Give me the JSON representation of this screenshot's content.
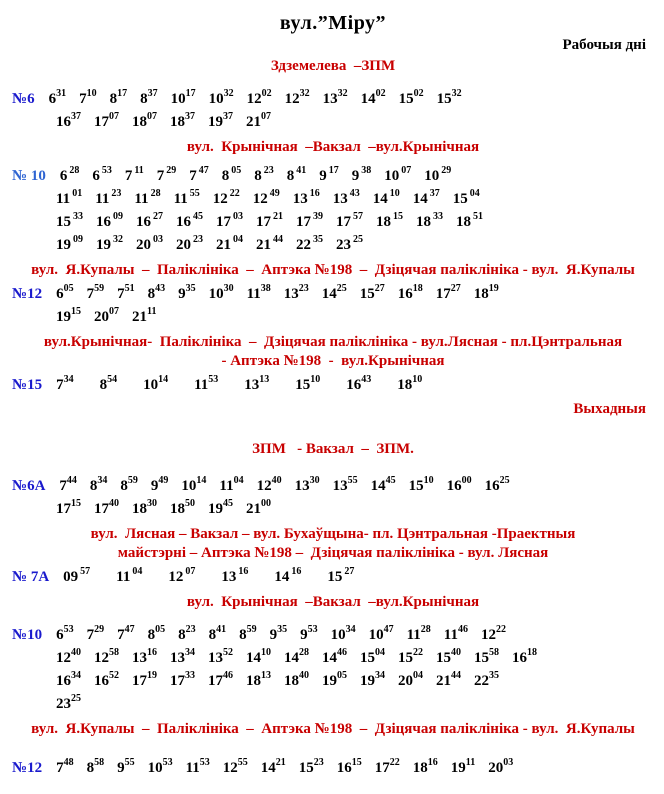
{
  "page": {
    "title": "вул.”Міру”"
  },
  "colors": {
    "heading_red": "#c80000",
    "route_number_blue": "#1a1acd",
    "times_black": "#000000"
  },
  "blocks": [
    {
      "type": "day_label",
      "text": "Рабочыя дні",
      "color": "black"
    },
    {
      "type": "heading",
      "lines": [
        "Здземелева  –ЗПМ"
      ]
    },
    {
      "type": "route",
      "number": "№6",
      "mt": 12,
      "lines": [
        [
          "6:31",
          "7:10",
          "8:17",
          "8:37",
          "10:17",
          "10:32",
          "12:02",
          "12:32",
          "13:32",
          "14:02",
          "15:02",
          "15:32"
        ],
        [
          "16:37",
          "17:07",
          "18:07",
          "18:37",
          "19:37",
          "21:07"
        ]
      ]
    },
    {
      "type": "heading",
      "lines": [
        "вул.  Крынічная  –Вакзал  –вул.Крынічная"
      ]
    },
    {
      "type": "route",
      "number": "№ 10",
      "number_color": "#2e64d2",
      "sup_space": true,
      "mt": 8,
      "lines": [
        [
          "6:28",
          "6:53",
          "7:11",
          "7:29",
          "7:47",
          "8:05",
          "8:23",
          "8:41",
          "9:17",
          "9:38",
          "10:07",
          "10:29"
        ],
        [
          "11:01",
          "11:23",
          "11:28",
          "11:55",
          "12:22",
          "12:49",
          "13:16",
          "13:43",
          "14:10",
          "14:37",
          "15:04"
        ],
        [
          "15:33",
          "16:09",
          "16:27",
          "16:45",
          "17:03",
          "17:21",
          "17:39",
          "17:57",
          "18:15",
          "18:33",
          "18:51"
        ],
        [
          "19:09",
          "19:32",
          "20:03",
          "20:23",
          "21:04",
          "21:44",
          "22:35",
          "23:25"
        ]
      ]
    },
    {
      "type": "heading",
      "lines": [
        "вул.  Я.Купалы  –  Паліклініка  –  Аптэка №198  –  Дзіцячая паліклініка - вул.  Я.Купалы"
      ]
    },
    {
      "type": "route",
      "number": "№12",
      "mt": 2,
      "lines": [
        [
          "6:05",
          "7:59",
          "7:51",
          "8:43",
          "9:35",
          "10:30",
          "11:38",
          "13:23",
          "14:25",
          "15:27",
          "16:18",
          "17:27",
          "18:19"
        ],
        [
          "19:15",
          "20:07",
          "21:11"
        ]
      ]
    },
    {
      "type": "heading",
      "mt": 4,
      "lines": [
        "вул.Крынічная-  Паліклініка  –  Дзіцячая паліклініка - вул.Лясная - пл.Цэнтральная",
        "- Аптэка №198  -  вул.Крынічная"
      ]
    },
    {
      "type": "route",
      "number": "№15",
      "wide": true,
      "mt": 2,
      "lines": [
        [
          "7:34",
          "8:54",
          "10:14",
          "11:53",
          "13:13",
          "15:10",
          "16:43",
          "18:10"
        ]
      ]
    },
    {
      "type": "day_label",
      "text": "Выхадныя",
      "color": "red",
      "mt": 4
    },
    {
      "type": "heading",
      "mt": 22,
      "lines": [
        "ЗПМ   - Вакзал  –  ЗПМ."
      ]
    },
    {
      "type": "route",
      "number": "№6А",
      "mt": 16,
      "lines": [
        [
          "7:44",
          "8:34",
          "8:59",
          "9:49",
          "10:14",
          "11:04",
          "12:40",
          "13:30",
          "13:55",
          "14:45",
          "15:10",
          "16:00",
          "16:25"
        ],
        [
          "17:15",
          "17:40",
          "18:30",
          "18:50",
          "19:45",
          "21:00"
        ]
      ]
    },
    {
      "type": "heading",
      "mt": 4,
      "lines": [
        "вул.  Лясная – Вакзал – вул. Бухаўщына- пл. Цэнтральная -Праектныя",
        "майстэрні – Аптэка №198 –  Дзіцячая паліклініка - вул. Лясная"
      ]
    },
    {
      "type": "route",
      "number": "№ 7А",
      "wide": true,
      "sup_space": true,
      "mt": 2,
      "lines": [
        [
          "09:57",
          "11:04",
          "12:07",
          "13:16",
          "14:16",
          "15:27"
        ]
      ]
    },
    {
      "type": "heading",
      "lines": [
        "вул.  Крынічная  –Вакзал  –вул.Крынічная"
      ]
    },
    {
      "type": "route",
      "number": "№10",
      "mt": 12,
      "lines": [
        [
          "6:53",
          "7:29",
          "7:47",
          "8:05",
          "8:23",
          "8:41",
          "8:59",
          "9:35",
          "9:53",
          "10:34",
          "10:47",
          "11:28",
          "11:46",
          "12:22"
        ],
        [
          "12:40",
          "12:58",
          "13:16",
          "13:34",
          "13:52",
          "14:10",
          "14:28",
          "14:46",
          "15:04",
          "15:22",
          "15:40",
          "15:58",
          "16:18"
        ],
        [
          "16:34",
          "16:52",
          "17:19",
          "17:33",
          "17:46",
          "18:13",
          "18:40",
          "19:05",
          "19:34",
          "20:04",
          "21:44",
          "22:35"
        ],
        [
          "23:25"
        ]
      ]
    },
    {
      "type": "heading",
      "mt": 4,
      "lines": [
        "вул.  Я.Купалы  –  Паліклініка  –  Аптэка №198  –  Дзіцячая паліклініка - вул.  Я.Купалы"
      ]
    },
    {
      "type": "route",
      "number": "№12",
      "mt": 18,
      "lines": [
        [
          "7:48",
          "8:58",
          "9:55",
          "10:53",
          "11:53",
          "12:55",
          "14:21",
          "15:23",
          "16:15",
          "17:22",
          "18:16",
          "19:11",
          "20:03"
        ]
      ]
    }
  ]
}
